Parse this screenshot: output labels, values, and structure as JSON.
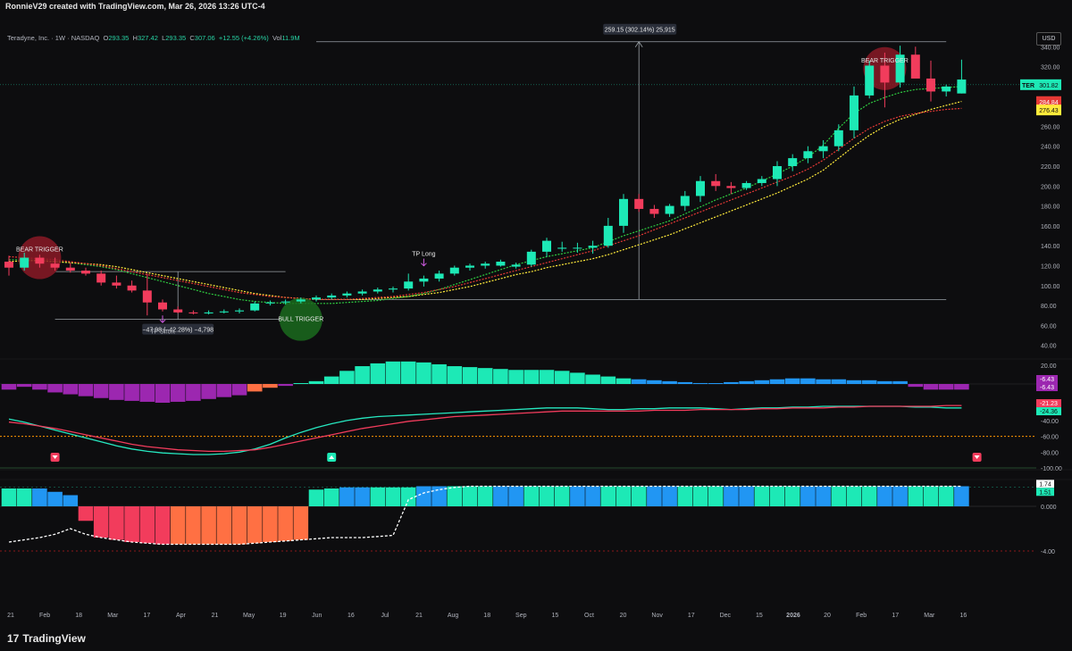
{
  "header": {
    "credit": "RonnieV29 created with TradingView.com, Mar 26, 2026 13:26 UTC-4",
    "symbol_legend": "Teradyne, Inc. · 1W · NASDAQ",
    "ohlc": {
      "o_label": "O",
      "o": "293.35",
      "h_label": "H",
      "h": "327.42",
      "l_label": "L",
      "l": "293.35",
      "c_label": "C",
      "c": "307.06",
      "change": "+12.55 (+4.26%)",
      "vol_label": "Vol",
      "vol": "11.9M"
    },
    "currency": "USD"
  },
  "footer": {
    "brand": "TradingView",
    "brand_mark": "17"
  },
  "colors": {
    "up": "#1de9b6",
    "down": "#f23c5c",
    "bg": "#0d0d0f",
    "purple": "#9c27b0",
    "orange": "#ff7043",
    "blue": "#2196f3",
    "ma_fast": "#2ecc40",
    "ma_slow": "#ffeb3b",
    "ma_red": "#e53935"
  },
  "chart_data": [
    {
      "type": "candlestick",
      "title": "Teradyne, Inc. 1W NASDAQ",
      "y_ticks": [
        40,
        60,
        80,
        100,
        120,
        140,
        160,
        180,
        200,
        220,
        240,
        260,
        280,
        300,
        320,
        340
      ],
      "ylim": [
        28,
        360
      ],
      "x_tick_labels": [
        "21",
        "Feb",
        "18",
        "Mar",
        "17",
        "Apr",
        "21",
        "May",
        "19",
        "Jun",
        "16",
        "Jul",
        "21",
        "Aug",
        "18",
        "Sep",
        "15",
        "Oct",
        "20",
        "Nov",
        "17",
        "Dec",
        "15",
        "2026",
        "20",
        "Feb",
        "17",
        "Mar",
        "16"
      ],
      "candles": [
        [
          124,
          130,
          110,
          118
        ],
        [
          118,
          133,
          115,
          128
        ],
        [
          128,
          131,
          118,
          122
        ],
        [
          122,
          128,
          115,
          118
        ],
        [
          118,
          123,
          113,
          115
        ],
        [
          115,
          118,
          110,
          112
        ],
        [
          112,
          115,
          100,
          103
        ],
        [
          103,
          110,
          97,
          100
        ],
        [
          100,
          105,
          93,
          95
        ],
        [
          95,
          112,
          70,
          83
        ],
        [
          83,
          86,
          74,
          76
        ],
        [
          76,
          79,
          72,
          73
        ],
        [
          73,
          75,
          71,
          72
        ],
        [
          72,
          75,
          71,
          73
        ],
        [
          73,
          76,
          72,
          74
        ],
        [
          74,
          77,
          72,
          75
        ],
        [
          75,
          84,
          74,
          82
        ],
        [
          82,
          85,
          80,
          83
        ],
        [
          83,
          86,
          81,
          84
        ],
        [
          84,
          88,
          82,
          86
        ],
        [
          86,
          90,
          84,
          88
        ],
        [
          88,
          92,
          86,
          90
        ],
        [
          90,
          94,
          88,
          92
        ],
        [
          92,
          96,
          90,
          94
        ],
        [
          94,
          98,
          92,
          96
        ],
        [
          96,
          99,
          93,
          97
        ],
        [
          97,
          112,
          95,
          104
        ],
        [
          104,
          110,
          99,
          107
        ],
        [
          107,
          115,
          104,
          112
        ],
        [
          112,
          120,
          110,
          118
        ],
        [
          118,
          122,
          115,
          120
        ],
        [
          120,
          124,
          117,
          122
        ],
        [
          120,
          126,
          119,
          124
        ],
        [
          119,
          123,
          117,
          121
        ],
        [
          121,
          136,
          119,
          134
        ],
        [
          134,
          148,
          129,
          145
        ],
        [
          137,
          144,
          134,
          138
        ],
        [
          138,
          143,
          133,
          138
        ],
        [
          138,
          145,
          132,
          140
        ],
        [
          140,
          168,
          138,
          160
        ],
        [
          160,
          192,
          153,
          187
        ],
        [
          187,
          192,
          174,
          177
        ],
        [
          177,
          181,
          168,
          172
        ],
        [
          172,
          182,
          169,
          180
        ],
        [
          180,
          195,
          175,
          190
        ],
        [
          190,
          210,
          184,
          205
        ],
        [
          205,
          212,
          195,
          200
        ],
        [
          200,
          204,
          192,
          198
        ],
        [
          198,
          205,
          196,
          203
        ],
        [
          203,
          210,
          200,
          207
        ],
        [
          207,
          225,
          200,
          220
        ],
        [
          220,
          232,
          215,
          228
        ],
        [
          228,
          240,
          223,
          235
        ],
        [
          235,
          246,
          228,
          240
        ],
        [
          240,
          262,
          235,
          256
        ],
        [
          256,
          300,
          248,
          291
        ],
        [
          291,
          326,
          288,
          321
        ],
        [
          321,
          334,
          279,
          304
        ],
        [
          304,
          341,
          299,
          332
        ],
        [
          332,
          340,
          310,
          308
        ],
        [
          308,
          326,
          285,
          295
        ],
        [
          295,
          302,
          290,
          300
        ],
        [
          293,
          327,
          293,
          307
        ]
      ],
      "moving_average_series": [
        {
          "values": [
            126,
            126,
            125,
            124,
            123,
            121,
            119,
            116,
            112,
            108,
            104,
            100,
            96,
            92,
            89,
            86,
            84,
            83,
            82,
            82,
            82,
            82,
            83,
            84,
            85,
            87,
            89,
            92,
            96,
            101,
            106,
            111,
            116,
            121,
            125,
            129,
            132,
            135,
            138,
            144,
            150,
            155,
            160,
            165,
            172,
            179,
            186,
            192,
            198,
            205,
            212,
            220,
            229,
            241,
            258,
            273,
            283,
            289,
            294,
            297,
            298,
            299,
            300
          ]
        },
        {
          "values": [
            124,
            125,
            125,
            124,
            123,
            122,
            121,
            119,
            116,
            113,
            110,
            107,
            104,
            101,
            98,
            95,
            92,
            90,
            88,
            87,
            86,
            86,
            86,
            86,
            87,
            88,
            89,
            91,
            93,
            96,
            99,
            103,
            107,
            111,
            114,
            118,
            121,
            124,
            127,
            131,
            136,
            141,
            146,
            151,
            157,
            163,
            169,
            175,
            181,
            187,
            193,
            200,
            207,
            216,
            228,
            240,
            251,
            260,
            267,
            272,
            277,
            281,
            285
          ]
        },
        {
          "values": [
            129,
            128,
            127,
            126,
            124,
            122,
            120,
            117,
            114,
            111,
            108,
            105,
            102,
            99,
            96,
            93,
            91,
            89,
            88,
            87,
            86,
            86,
            86,
            87,
            88,
            89,
            91,
            93,
            96,
            99,
            103,
            107,
            111,
            115,
            119,
            123,
            127,
            131,
            135,
            140,
            145,
            150,
            156,
            162,
            168,
            174,
            180,
            186,
            192,
            198,
            204,
            210,
            217,
            226,
            237,
            248,
            258,
            265,
            270,
            273,
            275,
            277,
            278
          ]
        }
      ],
      "price_labels": [
        {
          "text": "301.82",
          "ticker": "TER",
          "value": 301.82,
          "color": "#1de9b6"
        },
        {
          "text": "284.84",
          "value": 284.84,
          "color": "#e53935"
        },
        {
          "text": "276.43",
          "value": 276.43,
          "color": "#ffeb3b"
        }
      ],
      "annotations": [
        {
          "text": "BEAR TRIGGER",
          "candle": 2
        },
        {
          "text": "BULL TRIGGER",
          "candle": 19
        },
        {
          "text": "BEAR TRIGGER",
          "candle": 57
        },
        {
          "text": "TP Long",
          "candle": 27
        },
        {
          "text": "TP Short",
          "candle": 10
        }
      ],
      "measure_up": {
        "text": "259.15 (302.14%) 25,915",
        "from": 86,
        "to": 345
      },
      "measure_down": {
        "text": "−47.98 (−42.28%) −4,798",
        "from": 114,
        "to": 66
      }
    },
    {
      "type": "bar",
      "title": "Momentum histogram",
      "y_ticks": [
        20,
        0
      ],
      "values": [
        -6,
        -3,
        -6,
        -9,
        -11,
        -13,
        -15,
        -17,
        -18,
        -19,
        -20,
        -19,
        -18,
        -16,
        -14,
        -12,
        -8,
        -4,
        -2,
        0,
        3,
        8,
        14,
        19,
        22,
        24,
        24,
        23,
        21,
        19,
        18,
        17,
        16,
        15,
        15,
        15,
        14,
        12,
        10,
        8,
        6,
        5,
        4,
        3,
        2,
        1,
        0,
        2,
        3,
        4,
        5,
        6,
        6,
        5,
        5,
        4,
        4,
        3,
        3,
        -3,
        -6,
        -6,
        -6
      ],
      "label_values": [
        "-6.43",
        "-6.43"
      ]
    },
    {
      "type": "line",
      "title": "Oscillator",
      "y_ticks": [
        -40,
        -60,
        -80,
        -100
      ],
      "ylim": [
        -100,
        -5
      ],
      "series": [
        {
          "values": [
            -38,
            -42,
            -47,
            -52,
            -57,
            -62,
            -67,
            -72,
            -76,
            -79,
            -81,
            -82,
            -83,
            -83,
            -82,
            -80,
            -76,
            -70,
            -62,
            -55,
            -49,
            -44,
            -40,
            -37,
            -35,
            -34,
            -33,
            -32,
            -31,
            -30,
            -29,
            -28,
            -27,
            -26,
            -25,
            -24,
            -24,
            -24,
            -25,
            -26,
            -26,
            -25,
            -25,
            -24,
            -24,
            -24,
            -25,
            -26,
            -25,
            -24,
            -24,
            -23,
            -23,
            -22,
            -22,
            -22,
            -22,
            -22,
            -22,
            -23,
            -23,
            -24,
            -24
          ]
        },
        {
          "values": [
            -42,
            -44,
            -47,
            -50,
            -54,
            -58,
            -62,
            -66,
            -70,
            -73,
            -75,
            -77,
            -78,
            -79,
            -79,
            -78,
            -77,
            -74,
            -70,
            -66,
            -62,
            -58,
            -54,
            -50,
            -47,
            -44,
            -41,
            -39,
            -37,
            -35,
            -34,
            -33,
            -32,
            -31,
            -30,
            -29,
            -28,
            -28,
            -28,
            -28,
            -28,
            -28,
            -27,
            -27,
            -27,
            -26,
            -26,
            -26,
            -26,
            -25,
            -25,
            -24,
            -24,
            -24,
            -23,
            -23,
            -22,
            -22,
            -22,
            -22,
            -22,
            -21,
            -21
          ]
        }
      ],
      "label_values": [
        "-21.23",
        "-24.36"
      ],
      "reference_level": -60
    },
    {
      "type": "bar",
      "title": "Trend strength",
      "y_ticks": [
        -4.0,
        0.0
      ],
      "y_tick_labels": [
        "-4.00",
        "0.000"
      ],
      "ylim": [
        -4.4,
        2.4
      ],
      "values": [
        1.6,
        1.6,
        1.6,
        1.3,
        1.0,
        -1.3,
        -2.8,
        -3.0,
        -3.2,
        -3.3,
        -3.4,
        -3.4,
        -3.4,
        -3.4,
        -3.4,
        -3.4,
        -3.3,
        -3.2,
        -3.1,
        -3.0,
        1.5,
        1.6,
        1.7,
        1.7,
        1.7,
        1.7,
        1.7,
        1.8,
        1.8,
        1.8,
        1.8,
        1.8,
        1.8,
        1.8,
        1.8,
        1.8,
        1.8,
        1.8,
        1.8,
        1.8,
        1.8,
        1.8,
        1.8,
        1.8,
        1.8,
        1.8,
        1.8,
        1.8,
        1.8,
        1.8,
        1.8,
        1.8,
        1.8,
        1.8,
        1.8,
        1.8,
        1.8,
        1.8,
        1.8,
        1.8,
        1.8,
        1.8,
        1.8
      ],
      "signal_line": [
        -3.2,
        -3.0,
        -2.8,
        -2.5,
        -2.0,
        -2.5,
        -2.8,
        -3.0,
        -3.2,
        -3.3,
        -3.4,
        -3.4,
        -3.4,
        -3.4,
        -3.4,
        -3.4,
        -3.3,
        -3.2,
        -3.1,
        -3.0,
        -2.9,
        -2.8,
        -2.8,
        -2.8,
        -2.7,
        -2.6,
        0.6,
        1.2,
        1.5,
        1.7,
        1.8,
        1.8,
        1.8,
        1.8,
        1.8,
        1.8,
        1.8,
        1.8,
        1.8,
        1.8,
        1.8,
        1.8,
        1.8,
        1.8,
        1.8,
        1.8,
        1.8,
        1.8,
        1.8,
        1.8,
        1.8,
        1.8,
        1.8,
        1.8,
        1.8,
        1.8,
        1.8,
        1.8,
        1.8,
        1.8,
        1.8,
        1.8,
        1.8
      ],
      "label_values": [
        "1.74",
        "1.51"
      ]
    }
  ]
}
